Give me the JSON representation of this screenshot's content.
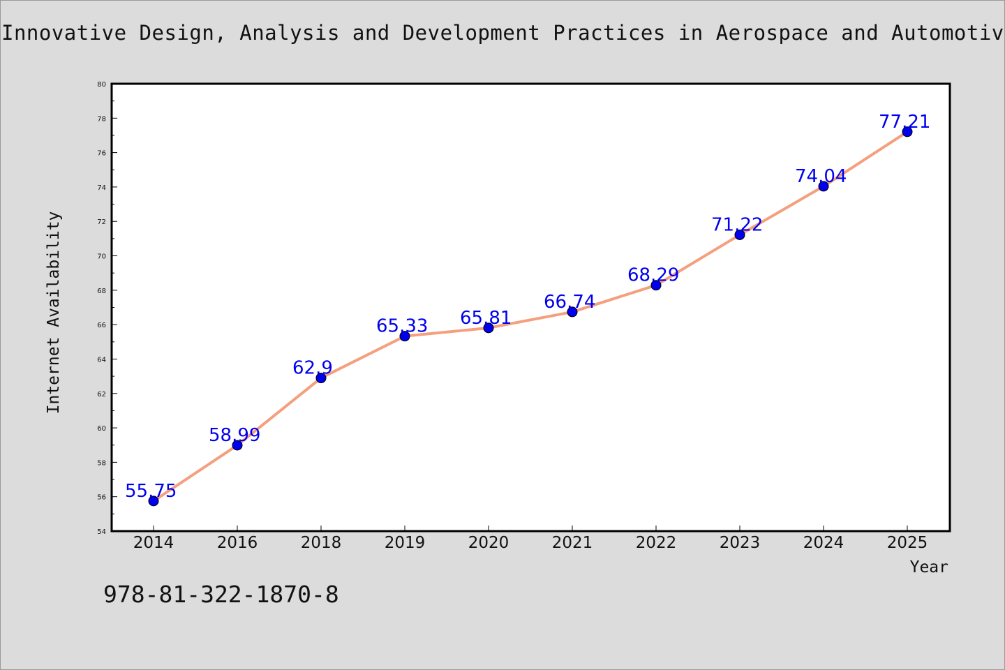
{
  "title": "Innovative Design, Analysis and Development Practices in Aerospace and Automotiv",
  "footer_text": "978-81-322-1870-8",
  "chart_data": {
    "type": "line",
    "categories": [
      "2014",
      "2016",
      "2018",
      "2019",
      "2020",
      "2021",
      "2022",
      "2023",
      "2024",
      "2025"
    ],
    "series": [
      {
        "values": [
          55.75,
          58.99,
          62.9,
          65.33,
          65.81,
          66.74,
          68.29,
          71.22,
          74.04,
          77.21
        ],
        "labels": [
          "55.75",
          "58.99",
          "62.9",
          "65.33",
          "65.81",
          "66.74",
          "68.29",
          "71.22",
          "74.04",
          "77.21"
        ],
        "line_color": "#f4a07e",
        "marker_color": "#0000ee"
      }
    ],
    "xlabel": "Year",
    "ylabel": "Internet Availability",
    "ylim": [
      54,
      80
    ],
    "yticks": [
      54,
      56,
      58,
      60,
      62,
      64,
      66,
      68,
      70,
      72,
      74,
      76,
      78,
      80
    ],
    "grid": false
  }
}
